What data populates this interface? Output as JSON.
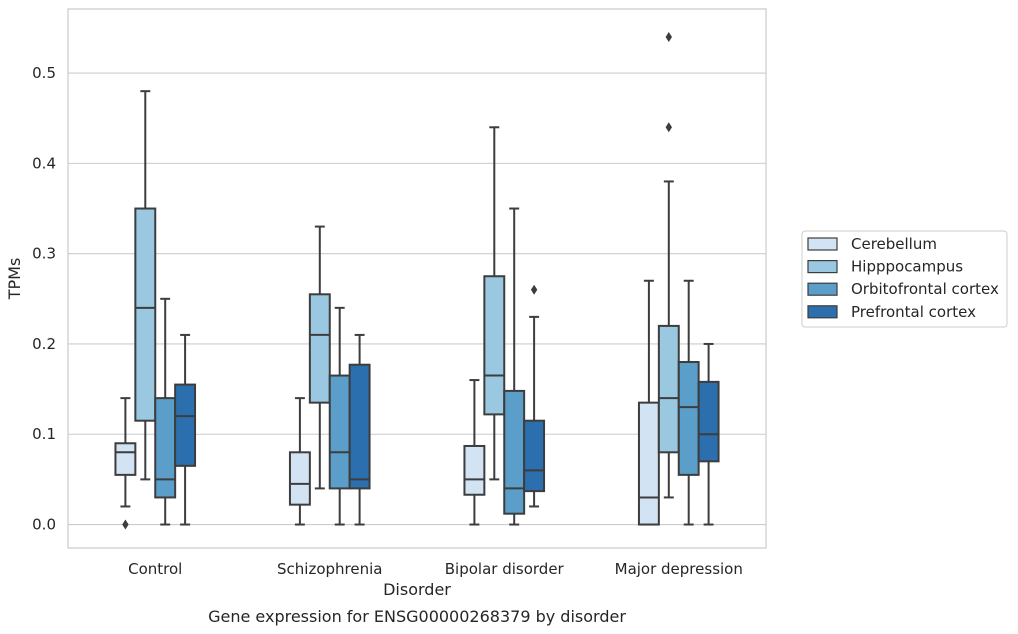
{
  "chart_data": {
    "type": "box",
    "title": "",
    "caption": "Gene expression for ENSG00000268379 by disorder",
    "xlabel": "Disorder",
    "ylabel": "TPMs",
    "ylim": [
      -0.026,
      0.571
    ],
    "yticks": [
      "0.0",
      "0.1",
      "0.2",
      "0.3",
      "0.4",
      "0.5"
    ],
    "ytick_values": [
      0.0,
      0.1,
      0.2,
      0.3,
      0.4,
      0.5
    ],
    "grid": "horizontal",
    "legend_position": "right",
    "categories": [
      "Control",
      "Schizophrenia",
      "Bipolar disorder",
      "Major depression"
    ],
    "series": [
      {
        "name": "Cerebellum",
        "color": "#d2e3f3",
        "boxes": [
          {
            "whisker_low": 0.02,
            "q1": 0.055,
            "median": 0.08,
            "q3": 0.09,
            "whisker_high": 0.14,
            "outliers": [
              0.0
            ]
          },
          {
            "whisker_low": 0.0,
            "q1": 0.022,
            "median": 0.045,
            "q3": 0.08,
            "whisker_high": 0.14,
            "outliers": []
          },
          {
            "whisker_low": 0.0,
            "q1": 0.033,
            "median": 0.05,
            "q3": 0.087,
            "whisker_high": 0.16,
            "outliers": []
          },
          {
            "whisker_low": 0.0,
            "q1": 0.0,
            "median": 0.03,
            "q3": 0.135,
            "whisker_high": 0.27,
            "outliers": []
          }
        ]
      },
      {
        "name": "Hipppocampus",
        "color": "#9ac8e0",
        "boxes": [
          {
            "whisker_low": 0.05,
            "q1": 0.115,
            "median": 0.24,
            "q3": 0.35,
            "whisker_high": 0.48,
            "outliers": []
          },
          {
            "whisker_low": 0.04,
            "q1": 0.135,
            "median": 0.21,
            "q3": 0.255,
            "whisker_high": 0.33,
            "outliers": []
          },
          {
            "whisker_low": 0.05,
            "q1": 0.122,
            "median": 0.165,
            "q3": 0.275,
            "whisker_high": 0.44,
            "outliers": []
          },
          {
            "whisker_low": 0.03,
            "q1": 0.08,
            "median": 0.14,
            "q3": 0.22,
            "whisker_high": 0.38,
            "outliers": [
              0.44,
              0.54
            ]
          }
        ]
      },
      {
        "name": "Orbitofrontal cortex",
        "color": "#5a9ec9",
        "boxes": [
          {
            "whisker_low": 0.0,
            "q1": 0.03,
            "median": 0.05,
            "q3": 0.14,
            "whisker_high": 0.25,
            "outliers": []
          },
          {
            "whisker_low": 0.0,
            "q1": 0.04,
            "median": 0.08,
            "q3": 0.165,
            "whisker_high": 0.24,
            "outliers": []
          },
          {
            "whisker_low": 0.0,
            "q1": 0.012,
            "median": 0.04,
            "q3": 0.148,
            "whisker_high": 0.35,
            "outliers": []
          },
          {
            "whisker_low": 0.0,
            "q1": 0.055,
            "median": 0.13,
            "q3": 0.18,
            "whisker_high": 0.27,
            "outliers": []
          }
        ]
      },
      {
        "name": "Prefrontal cortex",
        "color": "#2c6fae",
        "boxes": [
          {
            "whisker_low": 0.0,
            "q1": 0.065,
            "median": 0.12,
            "q3": 0.155,
            "whisker_high": 0.21,
            "outliers": []
          },
          {
            "whisker_low": 0.0,
            "q1": 0.04,
            "median": 0.05,
            "q3": 0.177,
            "whisker_high": 0.21,
            "outliers": []
          },
          {
            "whisker_low": 0.02,
            "q1": 0.037,
            "median": 0.06,
            "q3": 0.115,
            "whisker_high": 0.23,
            "outliers": [
              0.26
            ]
          },
          {
            "whisker_low": 0.0,
            "q1": 0.07,
            "median": 0.1,
            "q3": 0.158,
            "whisker_high": 0.2,
            "outliers": []
          }
        ]
      }
    ]
  }
}
